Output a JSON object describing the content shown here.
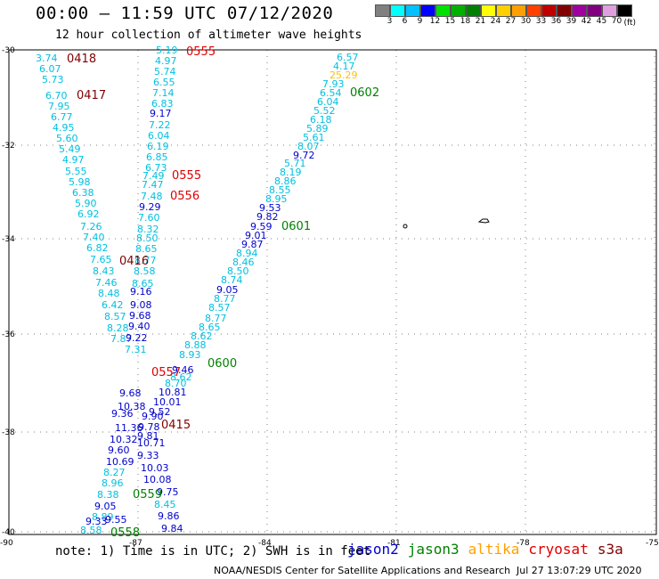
{
  "header": {
    "title": "00:00 – 11:59 UTC 07/12/2020",
    "subtitle": "12 hour collection of altimeter wave heights"
  },
  "legend": {
    "colors": [
      "#808080",
      "#00ffff",
      "#00c0ff",
      "#0000ff",
      "#00e000",
      "#00b000",
      "#008000",
      "#ffff00",
      "#ffd000",
      "#ffa000",
      "#ff4000",
      "#c00000",
      "#800000",
      "#a000a0",
      "#800080",
      "#e0a0e0",
      "#000000"
    ],
    "ticks": [
      "3",
      "6",
      "9",
      "12",
      "15",
      "18",
      "21",
      "24",
      "27",
      "30",
      "33",
      "36",
      "39",
      "42",
      "45",
      "70"
    ],
    "unit": "(ft)"
  },
  "axes": {
    "lat_labels": [
      "-30",
      "-32",
      "-34",
      "-36",
      "-38",
      "-40"
    ],
    "lon_labels": [
      "-90",
      "-87",
      "-84",
      "-81",
      "-78",
      "-75"
    ]
  },
  "points": [
    {
      "v": "3.74",
      "c": "#00c0e0"
    },
    {
      "v": "6.07",
      "c": "#00c0e0"
    },
    {
      "v": "5.73",
      "c": "#00c0e0"
    },
    {
      "v": "6.70",
      "c": "#00c0e0"
    },
    {
      "v": "7.95",
      "c": "#00c0e0"
    },
    {
      "v": "6.77",
      "c": "#00c0e0"
    },
    {
      "v": "4.95",
      "c": "#00c0e0"
    },
    {
      "v": "5.60",
      "c": "#00c0e0"
    },
    {
      "v": "5.49",
      "c": "#00c0e0"
    },
    {
      "v": "4.97",
      "c": "#00c0e0"
    },
    {
      "v": "5.55",
      "c": "#00c0e0"
    },
    {
      "v": "5.98",
      "c": "#00c0e0"
    },
    {
      "v": "6.38",
      "c": "#00c0e0"
    },
    {
      "v": "5.90",
      "c": "#00c0e0"
    },
    {
      "v": "6.92",
      "c": "#00c0e0"
    },
    {
      "v": "7.26",
      "c": "#00c0e0"
    },
    {
      "v": "7.40",
      "c": "#00c0e0"
    },
    {
      "v": "6.82",
      "c": "#00c0e0"
    },
    {
      "v": "7.65",
      "c": "#00c0e0"
    },
    {
      "v": "8.43",
      "c": "#00c0e0"
    },
    {
      "v": "7.46",
      "c": "#00c0e0"
    },
    {
      "v": "8.48",
      "c": "#00c0e0"
    },
    {
      "v": "6.42",
      "c": "#00c0e0"
    },
    {
      "v": "8.57",
      "c": "#00c0e0"
    },
    {
      "v": "8.28",
      "c": "#00c0e0"
    },
    {
      "v": "7.87",
      "c": "#00c0e0"
    },
    {
      "v": "5.19",
      "c": "#00c0e0"
    },
    {
      "v": "4.97",
      "c": "#00c0e0"
    },
    {
      "v": "5.74",
      "c": "#00c0e0"
    },
    {
      "v": "6.55",
      "c": "#00c0e0"
    },
    {
      "v": "7.14",
      "c": "#00c0e0"
    },
    {
      "v": "6.83",
      "c": "#00c0e0"
    },
    {
      "v": "9.17",
      "c": "#0000cc"
    },
    {
      "v": "7.22",
      "c": "#00c0e0"
    },
    {
      "v": "6.04",
      "c": "#00c0e0"
    },
    {
      "v": "6.19",
      "c": "#00c0e0"
    },
    {
      "v": "6.85",
      "c": "#00c0e0"
    },
    {
      "v": "6.73",
      "c": "#00c0e0"
    },
    {
      "v": "7.49",
      "c": "#00c0e0"
    },
    {
      "v": "7.47",
      "c": "#00c0e0"
    },
    {
      "v": "7.48",
      "c": "#00c0e0"
    },
    {
      "v": "9.29",
      "c": "#0000cc"
    },
    {
      "v": "7.60",
      "c": "#00c0e0"
    },
    {
      "v": "8.32",
      "c": "#00c0e0"
    },
    {
      "v": "8.50",
      "c": "#00c0e0"
    },
    {
      "v": "8.65",
      "c": "#00c0e0"
    },
    {
      "v": "8.77",
      "c": "#00c0e0"
    },
    {
      "v": "8.58",
      "c": "#00c0e0"
    },
    {
      "v": "8.65",
      "c": "#00c0e0"
    },
    {
      "v": "9.16",
      "c": "#0000cc"
    },
    {
      "v": "9.08",
      "c": "#0000cc"
    },
    {
      "v": "9.68",
      "c": "#0000cc"
    },
    {
      "v": "9.40",
      "c": "#0000cc"
    },
    {
      "v": "9.22",
      "c": "#0000cc"
    },
    {
      "v": "7.31",
      "c": "#00c0e0"
    },
    {
      "v": "6.57",
      "c": "#00c0e0"
    },
    {
      "v": "4.17",
      "c": "#00c0e0"
    },
    {
      "v": "25.29",
      "c": "#ffc000"
    },
    {
      "v": "7.93",
      "c": "#00c0e0"
    },
    {
      "v": "6.54",
      "c": "#00c0e0"
    },
    {
      "v": "6.04",
      "c": "#00c0e0"
    },
    {
      "v": "5.52",
      "c": "#00c0e0"
    },
    {
      "v": "6.18",
      "c": "#00c0e0"
    },
    {
      "v": "5.89",
      "c": "#00c0e0"
    },
    {
      "v": "5.61",
      "c": "#00c0e0"
    },
    {
      "v": "8.07",
      "c": "#00c0e0"
    },
    {
      "v": "9.72",
      "c": "#0000cc"
    },
    {
      "v": "5.71",
      "c": "#00c0e0"
    },
    {
      "v": "8.19",
      "c": "#00c0e0"
    },
    {
      "v": "8.86",
      "c": "#00c0e0"
    },
    {
      "v": "8.55",
      "c": "#00c0e0"
    },
    {
      "v": "8.95",
      "c": "#00c0e0"
    },
    {
      "v": "9.53",
      "c": "#0000cc"
    },
    {
      "v": "9.82",
      "c": "#0000cc"
    },
    {
      "v": "9.59",
      "c": "#0000cc"
    },
    {
      "v": "9.01",
      "c": "#0000cc"
    },
    {
      "v": "9.87",
      "c": "#0000cc"
    },
    {
      "v": "8.94",
      "c": "#00c0e0"
    },
    {
      "v": "8.46",
      "c": "#00c0e0"
    },
    {
      "v": "8.50",
      "c": "#00c0e0"
    },
    {
      "v": "8.74",
      "c": "#00c0e0"
    },
    {
      "v": "9.05",
      "c": "#0000cc"
    },
    {
      "v": "8.77",
      "c": "#00c0e0"
    },
    {
      "v": "8.57",
      "c": "#00c0e0"
    },
    {
      "v": "8.77",
      "c": "#00c0e0"
    },
    {
      "v": "8.65",
      "c": "#00c0e0"
    },
    {
      "v": "8.62",
      "c": "#00c0e0"
    },
    {
      "v": "8.88",
      "c": "#00c0e0"
    },
    {
      "v": "8.93",
      "c": "#00c0e0"
    },
    {
      "v": "8.62",
      "c": "#00c0e0"
    },
    {
      "v": "8.70",
      "c": "#00c0e0"
    },
    {
      "v": "10.81",
      "c": "#0000cc"
    },
    {
      "v": "10.01",
      "c": "#0000cc"
    },
    {
      "v": "9.52",
      "c": "#0000cc"
    },
    {
      "v": "9.68",
      "c": "#0000cc"
    },
    {
      "v": "10.38",
      "c": "#0000cc"
    },
    {
      "v": "9.36",
      "c": "#0000cc"
    },
    {
      "v": "11.36",
      "c": "#0000cc"
    },
    {
      "v": "10.32",
      "c": "#0000cc"
    },
    {
      "v": "9.60",
      "c": "#0000cc"
    },
    {
      "v": "10.69",
      "c": "#0000cc"
    },
    {
      "v": "8.27",
      "c": "#00c0e0"
    },
    {
      "v": "8.96",
      "c": "#00c0e0"
    },
    {
      "v": "8.38",
      "c": "#00c0e0"
    },
    {
      "v": "9.05",
      "c": "#0000cc"
    },
    {
      "v": "8.89",
      "c": "#00c0e0"
    },
    {
      "v": "9.33",
      "c": "#0000cc"
    },
    {
      "v": "9.55",
      "c": "#0000cc"
    },
    {
      "v": "8.58",
      "c": "#00c0e0"
    },
    {
      "v": "9.33",
      "c": "#0000cc"
    },
    {
      "v": "10.03",
      "c": "#0000cc"
    },
    {
      "v": "10.08",
      "c": "#0000cc"
    },
    {
      "v": "9.75",
      "c": "#0000cc"
    },
    {
      "v": "8.45",
      "c": "#00c0e0"
    },
    {
      "v": "9.86",
      "c": "#0000cc"
    },
    {
      "v": "9.84",
      "c": "#0000cc"
    },
    {
      "v": "9.46",
      "c": "#0000cc"
    },
    {
      "v": "9.90",
      "c": "#0000cc"
    },
    {
      "v": "9.78",
      "c": "#0000cc"
    },
    {
      "v": "10.71",
      "c": "#0000cc"
    },
    {
      "v": "9.81",
      "c": "#0000cc"
    }
  ],
  "passes": [
    {
      "id": "0418",
      "c": "#800000"
    },
    {
      "id": "0417",
      "c": "#800000"
    },
    {
      "id": "0555",
      "c": "#e00000"
    },
    {
      "id": "0555",
      "c": "#e00000"
    },
    {
      "id": "0556",
      "c": "#e00000"
    },
    {
      "id": "0416",
      "c": "#800000"
    },
    {
      "id": "0602",
      "c": "#008000"
    },
    {
      "id": "0601",
      "c": "#008000"
    },
    {
      "id": "0600",
      "c": "#008000"
    },
    {
      "id": "0557",
      "c": "#e00000"
    },
    {
      "id": "0415",
      "c": "#800000"
    },
    {
      "id": "0559",
      "c": "#008000"
    },
    {
      "id": "0558",
      "c": "#008000"
    }
  ],
  "footer": {
    "note": "note:  1) Time is in UTC;  2) SWH is in feet",
    "satellites": [
      {
        "name": "jason2",
        "color": "#0000cc"
      },
      {
        "name": "jason3",
        "color": "#008000"
      },
      {
        "name": "altika",
        "color": "#ffa000"
      },
      {
        "name": "cryosat",
        "color": "#e00000"
      },
      {
        "name": "s3a",
        "color": "#800000"
      }
    ],
    "credit": "NOAA/NESDIS Center for Satellite Applications and Research",
    "timestamp": "Jul 27 13:07:29 UTC 2020"
  }
}
